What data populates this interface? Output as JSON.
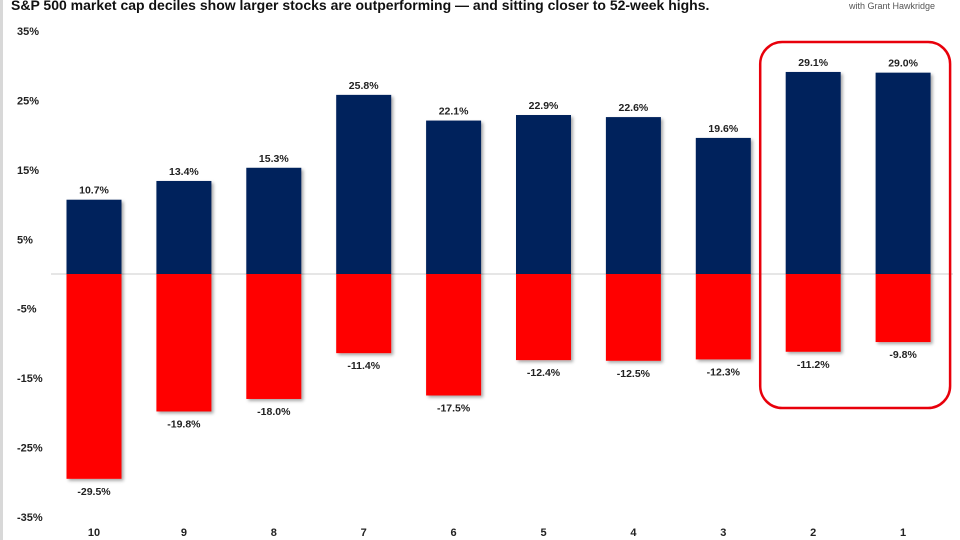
{
  "header": {
    "credit": "with Grant Hawkridge"
  },
  "chart_data": {
    "type": "bar",
    "title": "S&P 500 market cap deciles show larger stocks are outperforming — and sitting closer to 52-week highs.",
    "xlabel": "",
    "ylabel": "",
    "ylim": [
      -35,
      35
    ],
    "yticks": [
      35,
      25,
      15,
      5,
      -5,
      -15,
      -25,
      -35
    ],
    "ytick_labels": [
      "35%",
      "25%",
      "15%",
      "5%",
      "-5%",
      "-15%",
      "-25%",
      "-35%"
    ],
    "categories": [
      "10",
      "9",
      "8",
      "7",
      "6",
      "5",
      "4",
      "3",
      "2",
      "1"
    ],
    "series": [
      {
        "name": "positive",
        "color": "#00205b",
        "values": [
          10.7,
          13.4,
          15.3,
          25.8,
          22.1,
          22.9,
          22.6,
          19.6,
          29.1,
          29.0
        ],
        "labels": [
          "10.7%",
          "13.4%",
          "15.3%",
          "25.8%",
          "22.1%",
          "22.9%",
          "22.6%",
          "19.6%",
          "29.1%",
          "29.0%"
        ]
      },
      {
        "name": "negative",
        "color": "#ff0000",
        "values": [
          -29.5,
          -19.8,
          -18.0,
          -11.4,
          -17.5,
          -12.4,
          -12.5,
          -12.3,
          -11.2,
          -9.8
        ],
        "labels": [
          "-29.5%",
          "-19.8%",
          "-18.0%",
          "-11.4%",
          "-17.5%",
          "-12.4%",
          "-12.5%",
          "-12.3%",
          "-11.2%",
          "-9.8%"
        ]
      }
    ],
    "highlight": {
      "categories": [
        "2",
        "1"
      ],
      "color": "#e8000b"
    },
    "grid": false,
    "legend": "none"
  }
}
